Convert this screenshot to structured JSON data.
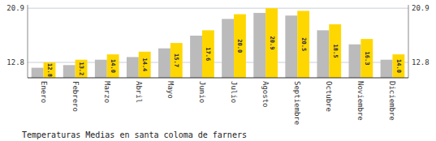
{
  "chart_data": {
    "type": "bar",
    "title": "Temperaturas Medias en santa coloma de farners",
    "categories": [
      "Enero",
      "Febrero",
      "Marzo",
      "Abril",
      "Mayo",
      "Junio",
      "Julio",
      "Agosto",
      "Septiembre",
      "Octubre",
      "Noviembre",
      "Diciembre"
    ],
    "series": [
      {
        "color": "#BBBBBB",
        "values": [
          12.0,
          12.4,
          13.2,
          13.6,
          14.9,
          16.8,
          19.3,
          20.2,
          19.8,
          17.6,
          15.5,
          13.2
        ]
      },
      {
        "color": "#FFD700",
        "values": [
          12.8,
          13.2,
          14.0,
          14.4,
          15.7,
          17.6,
          20.0,
          20.9,
          20.5,
          18.5,
          16.3,
          14.0
        ],
        "data_labels": true,
        "value_labels": [
          "12.8",
          "13.2",
          "14.0",
          "14.4",
          "15.7",
          "17.6",
          "20.0",
          "20.9",
          "20.5",
          "18.5",
          "16.3",
          "14.0"
        ]
      }
    ],
    "ylim": [
      10.5,
      21.4
    ],
    "yticks": [
      12.8,
      20.9
    ],
    "y2lim": [
      10.5,
      21.4
    ],
    "y2ticks": [
      12.8,
      20.9
    ],
    "grid": true
  }
}
